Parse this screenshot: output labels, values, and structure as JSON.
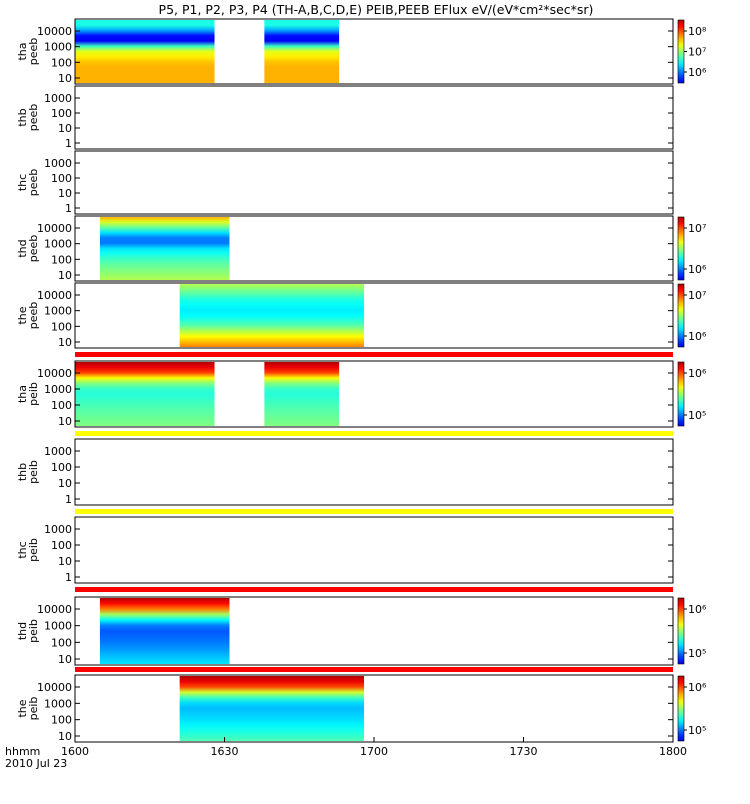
{
  "title": "P5, P1, P2, P3, P4 (TH-A,B,C,D,E) PEIB,PEEB EFlux eV/(eV*cm²*sec*sr)",
  "time_axis": {
    "label_left": "hhmm",
    "date_label": "2010 Jul 23",
    "ticks": [
      "1600",
      "1630",
      "1700",
      "1730",
      "1800"
    ]
  },
  "chart_data": [
    {
      "type": "heatmap",
      "panel_label": [
        "tha",
        "peeb"
      ],
      "ylog": true,
      "y_ticks": [
        "10",
        "100",
        "1000",
        "10000"
      ],
      "data_intervals": [
        [
          "16:00",
          "16:28"
        ],
        [
          "16:38",
          "16:53"
        ]
      ],
      "colorbar_ticks": [
        "10⁶",
        "10⁷",
        "10⁸"
      ],
      "spectrum": [
        [
          0.3,
          0.7
        ],
        [
          0.5,
          0.6
        ],
        [
          0.6,
          0.4
        ],
        [
          0.65,
          0.15
        ],
        [
          0.7,
          0.05
        ],
        [
          0.9,
          0.4
        ]
      ]
    },
    {
      "type": "heatmap",
      "panel_label": [
        "thb",
        "peeb"
      ],
      "ylog": true,
      "y_ticks": [
        "1",
        "10",
        "100",
        "1000"
      ],
      "data_intervals": [],
      "colorbar_ticks": [],
      "spectrum": []
    },
    {
      "type": "heatmap",
      "panel_label": [
        "thc",
        "peeb"
      ],
      "ylog": true,
      "y_ticks": [
        "1",
        "10",
        "100",
        "1000"
      ],
      "data_intervals": [],
      "colorbar_ticks": [],
      "spectrum": []
    },
    {
      "type": "heatmap",
      "panel_label": [
        "thd",
        "peeb"
      ],
      "ylog": true,
      "y_ticks": [
        "10",
        "100",
        "1000",
        "10000"
      ],
      "data_intervals": [
        [
          "16:05",
          "16:31"
        ]
      ],
      "colorbar_ticks": [
        "10⁶",
        "10⁷"
      ],
      "spectrum": [
        [
          0.0,
          0.55
        ],
        [
          0.3,
          0.45
        ],
        [
          0.5,
          0.35
        ],
        [
          0.62,
          0.2
        ],
        [
          0.72,
          0.3
        ],
        [
          0.85,
          0.5
        ],
        [
          1.0,
          0.7
        ]
      ]
    },
    {
      "type": "heatmap",
      "panel_label": [
        "the",
        "peeb"
      ],
      "ylog": true,
      "y_ticks": [
        "10",
        "100",
        "1000",
        "10000"
      ],
      "data_intervals": [
        [
          "16:21",
          "16:58"
        ]
      ],
      "colorbar_ticks": [
        "10⁶",
        "10⁷"
      ],
      "spectrum": [
        [
          0.0,
          0.75
        ],
        [
          0.2,
          0.6
        ],
        [
          0.35,
          0.45
        ],
        [
          0.55,
          0.35
        ],
        [
          0.75,
          0.4
        ],
        [
          1.0,
          0.55
        ]
      ]
    },
    {
      "type": "heatmap",
      "panel_label": [
        "tha",
        "peib"
      ],
      "ylog": true,
      "y_ticks": [
        "10",
        "100",
        "1000",
        "10000"
      ],
      "data_intervals": [
        [
          "16:00",
          "16:28"
        ],
        [
          "16:38",
          "16:53"
        ]
      ],
      "colorbar_ticks": [
        "10⁵",
        "10⁶"
      ],
      "spectrum": [
        [
          0.0,
          0.5
        ],
        [
          0.3,
          0.45
        ],
        [
          0.55,
          0.4
        ],
        [
          0.72,
          0.55
        ],
        [
          0.85,
          0.85
        ],
        [
          1.0,
          0.95
        ]
      ]
    },
    {
      "type": "heatmap",
      "panel_label": [
        "thb",
        "peib"
      ],
      "ylog": true,
      "y_ticks": [
        "1",
        "10",
        "100",
        "1000"
      ],
      "data_intervals": [],
      "colorbar_ticks": [],
      "spectrum": []
    },
    {
      "type": "heatmap",
      "panel_label": [
        "thc",
        "peib"
      ],
      "ylog": true,
      "y_ticks": [
        "1",
        "10",
        "100",
        "1000"
      ],
      "data_intervals": [],
      "colorbar_ticks": [],
      "spectrum": []
    },
    {
      "type": "heatmap",
      "panel_label": [
        "thd",
        "peib"
      ],
      "ylog": true,
      "y_ticks": [
        "10",
        "100",
        "1000",
        "10000"
      ],
      "data_intervals": [
        [
          "16:05",
          "16:31"
        ]
      ],
      "colorbar_ticks": [
        "10⁵",
        "10⁶"
      ],
      "spectrum": [
        [
          0.0,
          0.35
        ],
        [
          0.3,
          0.25
        ],
        [
          0.55,
          0.2
        ],
        [
          0.72,
          0.45
        ],
        [
          0.85,
          0.8
        ],
        [
          1.0,
          0.95
        ]
      ]
    },
    {
      "type": "heatmap",
      "panel_label": [
        "the",
        "peib"
      ],
      "ylog": true,
      "y_ticks": [
        "10",
        "100",
        "1000",
        "10000"
      ],
      "data_intervals": [
        [
          "16:21",
          "16:58"
        ]
      ],
      "colorbar_ticks": [
        "10⁵",
        "10⁶"
      ],
      "spectrum": [
        [
          0.0,
          0.45
        ],
        [
          0.3,
          0.35
        ],
        [
          0.55,
          0.3
        ],
        [
          0.72,
          0.5
        ],
        [
          0.85,
          0.85
        ],
        [
          1.0,
          0.95
        ]
      ]
    }
  ],
  "separator_bars": [
    {
      "after_panel": 4,
      "color": "#ff0000"
    },
    {
      "after_panel": 5,
      "color": "#ffff00"
    },
    {
      "after_panel": 6,
      "color": "#ffff00"
    },
    {
      "after_panel": 7,
      "color": "#ff0000"
    },
    {
      "after_panel": 8,
      "color": "#ff0000"
    }
  ]
}
